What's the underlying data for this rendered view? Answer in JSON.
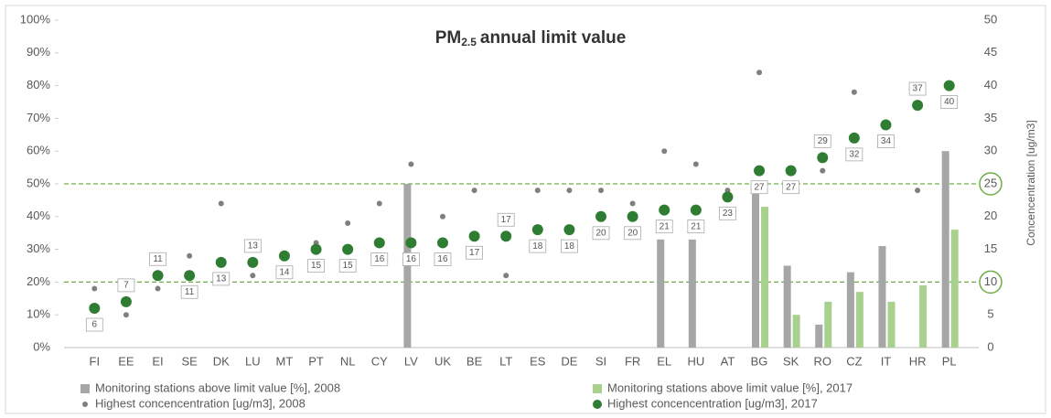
{
  "chart_data": {
    "type": "bar",
    "title": [
      "PM",
      "2.5",
      "annual limit value"
    ],
    "y2_label": "Concencentration [ug/m3]",
    "categories": [
      "FI",
      "EE",
      "EI",
      "SE",
      "DK",
      "LU",
      "MT",
      "PT",
      "NL",
      "CY",
      "LV",
      "UK",
      "BE",
      "LT",
      "ES",
      "DE",
      "SI",
      "FR",
      "EL",
      "HU",
      "AT",
      "BG",
      "SK",
      "RO",
      "CZ",
      "IT",
      "HR",
      "PL"
    ],
    "ylim": [
      0,
      100
    ],
    "yticks": [
      {
        "value": 0,
        "label": "0%"
      },
      {
        "value": 10,
        "label": "10%"
      },
      {
        "value": 20,
        "label": "20%"
      },
      {
        "value": 30,
        "label": "30%"
      },
      {
        "value": 40,
        "label": "40%"
      },
      {
        "value": 50,
        "label": "50%"
      },
      {
        "value": 60,
        "label": "60%"
      },
      {
        "value": 70,
        "label": "70%"
      },
      {
        "value": 80,
        "label": "80%"
      },
      {
        "value": 90,
        "label": "90%"
      },
      {
        "value": 100,
        "label": "100%"
      }
    ],
    "y2lim": [
      0,
      50
    ],
    "y2ticks": [
      0,
      5,
      10,
      15,
      20,
      25,
      30,
      35,
      40,
      45,
      50
    ],
    "limit_lines": [
      25,
      10
    ],
    "series": [
      {
        "name": "Monitoring stations above limit value [%], 2008",
        "color": "#a6a6a6",
        "kind": "bar",
        "values": [
          null,
          null,
          null,
          null,
          null,
          null,
          null,
          null,
          null,
          null,
          50,
          null,
          null,
          null,
          null,
          null,
          null,
          null,
          33,
          33,
          null,
          50,
          25,
          7,
          23,
          31,
          null,
          60
        ]
      },
      {
        "name": "Monitoring stations above limit value [%], 2017",
        "color": "#a9d18e",
        "kind": "bar",
        "values": [
          null,
          null,
          null,
          null,
          null,
          null,
          null,
          null,
          null,
          null,
          null,
          null,
          null,
          null,
          null,
          null,
          null,
          null,
          null,
          null,
          null,
          43,
          10,
          14,
          17,
          14,
          19,
          36
        ]
      },
      {
        "name": "Highest concencentration [ug/m3], 2008",
        "color": "#7f7f7f",
        "kind": "dot",
        "axis": "y2",
        "values": [
          9,
          5,
          9,
          14,
          22,
          11,
          14,
          16,
          19,
          22,
          28,
          20,
          24,
          11,
          24,
          24,
          24,
          22,
          30,
          28,
          24,
          42,
          27,
          27,
          39,
          null,
          24,
          40
        ]
      },
      {
        "name": "Highest concencentration [ug/m3], 2017",
        "color": "#2e7d32",
        "kind": "dot",
        "axis": "y2",
        "labels": true,
        "values": [
          6,
          7,
          11,
          11,
          13,
          13,
          14,
          15,
          15,
          16,
          16,
          16,
          17,
          17,
          18,
          18,
          20,
          20,
          21,
          21,
          23,
          27,
          27,
          29,
          32,
          34,
          37,
          40
        ]
      }
    ]
  }
}
